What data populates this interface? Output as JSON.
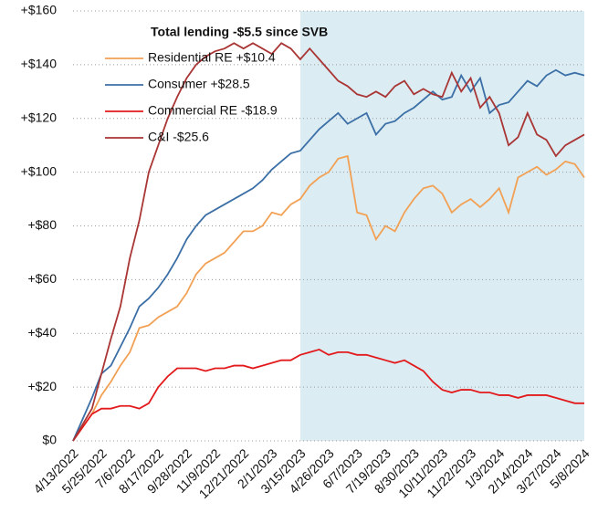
{
  "chart_data": {
    "type": "line",
    "legend_title": "Total lending -$5.5 since SVB",
    "legend": "upper left",
    "grid": true,
    "shaded_from": "3/15/2023",
    "shade_color": "#dbecf3",
    "categories": [
      "4/13/2022",
      null,
      null,
      "5/25/2022",
      null,
      null,
      "7/6/2022",
      null,
      null,
      "8/17/2022",
      null,
      null,
      "9/28/2022",
      null,
      null,
      "11/9/2022",
      null,
      null,
      "12/21/2022",
      null,
      null,
      "2/1/2023",
      null,
      null,
      "3/15/2023",
      null,
      null,
      "4/26/2023",
      null,
      null,
      "6/7/2023",
      null,
      null,
      "7/19/2023",
      null,
      null,
      "8/30/2023",
      null,
      null,
      "10/11/2023",
      null,
      null,
      "11/22/2023",
      null,
      null,
      "1/3/2024",
      null,
      null,
      "2/14/2024",
      null,
      null,
      "3/27/2024",
      null,
      null,
      "5/8/2024"
    ],
    "ylim": [
      0,
      160
    ],
    "yticks": [
      {
        "value": 0,
        "label": "$0"
      },
      {
        "value": 20,
        "label": "+$20"
      },
      {
        "value": 40,
        "label": "+$40"
      },
      {
        "value": 60,
        "label": "+$60"
      },
      {
        "value": 80,
        "label": "+$80"
      },
      {
        "value": 100,
        "label": "+$100"
      },
      {
        "value": 120,
        "label": "+$120"
      },
      {
        "value": 140,
        "label": "+$140"
      },
      {
        "value": 160,
        "label": "+$160"
      }
    ],
    "series": [
      {
        "name": "Residential RE +$10.4",
        "color": "#f2a154",
        "values": [
          0,
          5,
          10,
          17,
          22,
          28,
          33,
          42,
          43,
          46,
          48,
          50,
          55,
          62,
          66,
          68,
          70,
          74,
          78,
          78,
          80,
          85,
          84,
          88,
          90,
          95,
          98,
          100,
          105,
          106,
          85,
          84,
          75,
          80,
          78,
          85,
          90,
          94,
          95,
          92,
          85,
          88,
          90,
          87,
          90,
          94,
          85,
          98,
          100,
          102,
          99,
          101,
          104,
          103,
          98
        ]
      },
      {
        "name": "Consumer +$28.5",
        "color": "#3b6fa6",
        "values": [
          0,
          8,
          16,
          25,
          28,
          35,
          42,
          50,
          53,
          57,
          62,
          68,
          75,
          80,
          84,
          86,
          88,
          90,
          92,
          94,
          97,
          101,
          104,
          107,
          108,
          112,
          116,
          119,
          122,
          118,
          120,
          122,
          114,
          118,
          119,
          122,
          124,
          127,
          130,
          127,
          128,
          136,
          130,
          135,
          122,
          125,
          126,
          130,
          134,
          132,
          136,
          138,
          136,
          137,
          136
        ]
      },
      {
        "name": "Commercial RE -$18.9",
        "color": "#e31a1c",
        "values": [
          0,
          5,
          10,
          12,
          12,
          13,
          13,
          12,
          14,
          20,
          24,
          27,
          27,
          27,
          26,
          27,
          27,
          28,
          28,
          27,
          28,
          29,
          30,
          30,
          32,
          33,
          34,
          32,
          33,
          33,
          32,
          32,
          31,
          30,
          29,
          30,
          28,
          26,
          22,
          19,
          18,
          19,
          19,
          18,
          18,
          17,
          17,
          16,
          17,
          17,
          17,
          16,
          15,
          14,
          14
        ]
      },
      {
        "name": "C&I -$25.6",
        "color": "#a93534",
        "values": [
          0,
          6,
          12,
          25,
          38,
          50,
          68,
          82,
          100,
          110,
          120,
          128,
          135,
          140,
          143,
          145,
          146,
          148,
          146,
          148,
          146,
          144,
          148,
          146,
          142,
          146,
          142,
          138,
          134,
          132,
          129,
          128,
          130,
          128,
          132,
          134,
          129,
          131,
          129,
          128,
          137,
          130,
          135,
          124,
          128,
          122,
          110,
          113,
          122,
          114,
          112,
          106,
          110,
          112,
          114
        ]
      }
    ]
  }
}
